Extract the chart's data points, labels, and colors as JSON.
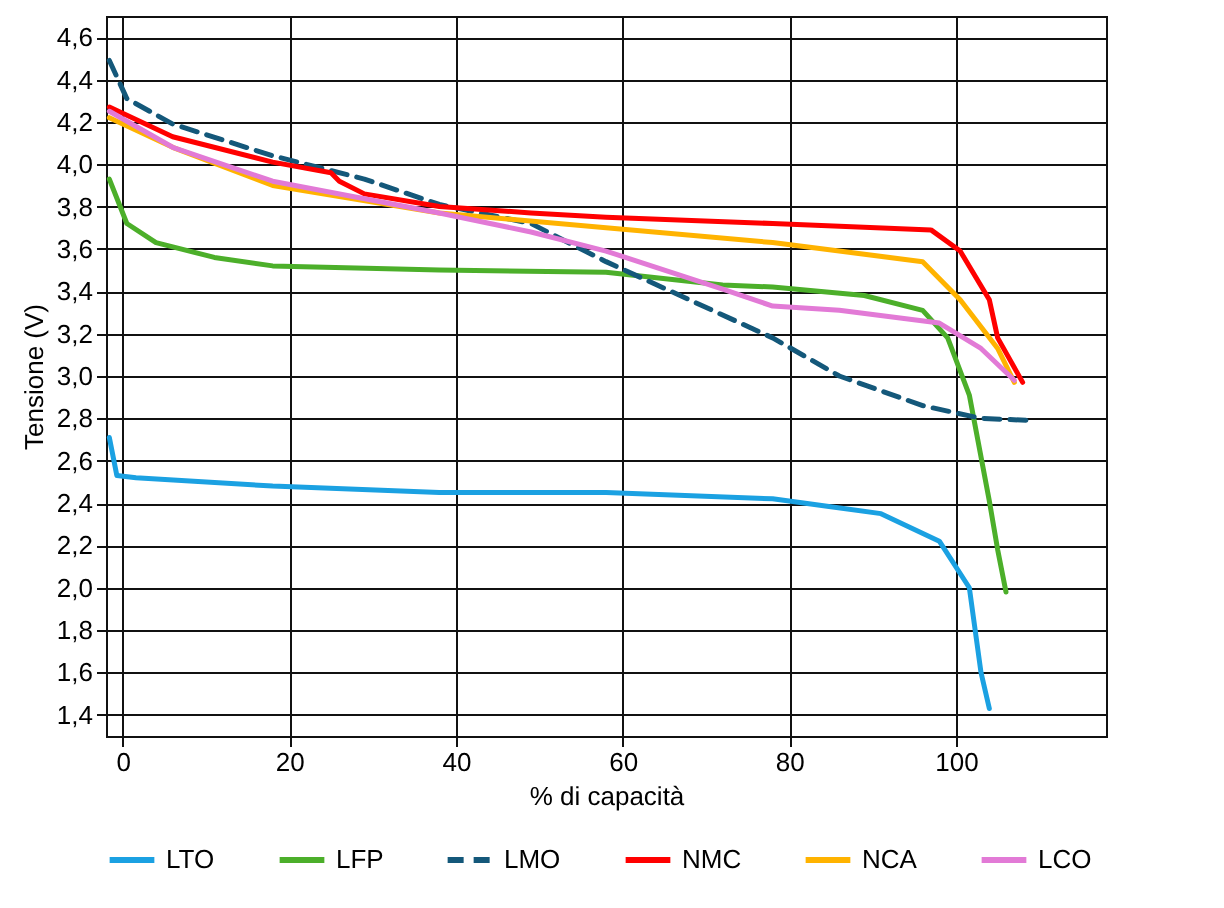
{
  "chart_data": {
    "type": "line",
    "xlabel": "% di capacità",
    "ylabel": "Tensione (V)",
    "xlim": [
      -2,
      118
    ],
    "ylim": [
      1.3,
      4.7
    ],
    "xticks": [
      0,
      20,
      40,
      60,
      80,
      100
    ],
    "yticks": [
      {
        "value": 1.4,
        "label": "1,4"
      },
      {
        "value": 1.6,
        "label": "1,6"
      },
      {
        "value": 1.8,
        "label": "1,8"
      },
      {
        "value": 2.0,
        "label": "2,0"
      },
      {
        "value": 2.2,
        "label": "2,2"
      },
      {
        "value": 2.4,
        "label": "2,4"
      },
      {
        "value": 2.6,
        "label": "2,6"
      },
      {
        "value": 2.8,
        "label": "2,8"
      },
      {
        "value": 3.0,
        "label": "3,0"
      },
      {
        "value": 3.2,
        "label": "3,2"
      },
      {
        "value": 3.4,
        "label": "3,4"
      },
      {
        "value": 3.6,
        "label": "3,6"
      },
      {
        "value": 3.8,
        "label": "3,8"
      },
      {
        "value": 4.0,
        "label": "4,0"
      },
      {
        "value": 4.2,
        "label": "4,2"
      },
      {
        "value": 4.4,
        "label": "4,4"
      },
      {
        "value": 4.6,
        "label": "4,6"
      }
    ],
    "grid": true,
    "legend": "bottom",
    "line_style": "solid",
    "series": [
      {
        "name": "LTO",
        "color": "#1ba1e2",
        "x": [
          -1.6,
          -0.7,
          1.6,
          18,
          38,
          58,
          78,
          91,
          98,
          101.6,
          103,
          104
        ],
        "values": [
          2.71,
          2.53,
          2.52,
          2.48,
          2.45,
          2.45,
          2.42,
          2.35,
          2.22,
          2.0,
          1.6,
          1.43
        ]
      },
      {
        "name": "LFP",
        "color": "#4caf2a",
        "x": [
          -1.6,
          0.5,
          4,
          11,
          18,
          38,
          58,
          72,
          78,
          89,
          96,
          99,
          101.6,
          104,
          105,
          106
        ],
        "values": [
          3.93,
          3.72,
          3.63,
          3.56,
          3.52,
          3.5,
          3.49,
          3.43,
          3.42,
          3.38,
          3.31,
          3.18,
          2.91,
          2.41,
          2.18,
          1.98
        ]
      },
      {
        "name": "LMO",
        "color": "#14587a",
        "line_style": "dashed",
        "x": [
          -1.6,
          0.5,
          6,
          18,
          29,
          38,
          49,
          58,
          68,
          78,
          86,
          96,
          103,
          109
        ],
        "values": [
          4.49,
          4.31,
          4.19,
          4.04,
          3.93,
          3.81,
          3.72,
          3.54,
          3.36,
          3.18,
          3.0,
          2.86,
          2.8,
          2.79
        ]
      },
      {
        "name": "NMC",
        "color": "#ff0000",
        "x": [
          -1.6,
          6,
          18,
          25,
          26,
          29,
          38,
          49,
          58,
          78,
          97,
          100.5,
          104,
          105,
          108
        ],
        "values": [
          4.27,
          4.13,
          4.01,
          3.96,
          3.92,
          3.86,
          3.8,
          3.77,
          3.75,
          3.72,
          3.69,
          3.59,
          3.36,
          3.18,
          2.97
        ]
      },
      {
        "name": "NCA",
        "color": "#ffb300",
        "x": [
          -1.6,
          6,
          18,
          38,
          58,
          78,
          96,
          100.5,
          105,
          107
        ],
        "values": [
          4.22,
          4.08,
          3.9,
          3.77,
          3.7,
          3.63,
          3.54,
          3.36,
          3.13,
          2.97
        ]
      },
      {
        "name": "LCO",
        "color": "#e27ad6",
        "x": [
          -1.6,
          6,
          18,
          38,
          49,
          58,
          72,
          78,
          86,
          98,
          103,
          107
        ],
        "values": [
          4.25,
          4.08,
          3.92,
          3.77,
          3.68,
          3.59,
          3.41,
          3.33,
          3.31,
          3.25,
          3.13,
          2.98
        ]
      }
    ]
  }
}
